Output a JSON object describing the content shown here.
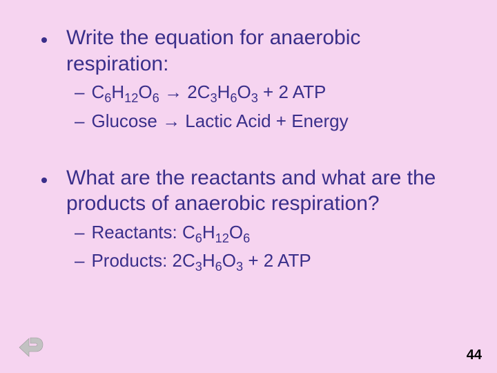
{
  "slide": {
    "background_color": "#f6d4f0",
    "text_color": "#3a2f8a",
    "font_family": "Comic Sans MS",
    "bullets": [
      {
        "text": "Write the equation for anaerobic respiration:",
        "fontsize": 30,
        "subitems": [
          {
            "html": "C<sub>6</sub>H<sub>12</sub>O<sub>6</sub> → 2C<sub>3</sub>H<sub>6</sub>O<sub>3</sub> + 2 ATP",
            "fontsize": 26
          },
          {
            "html": "Glucose → Lactic Acid + Energy",
            "fontsize": 26
          }
        ]
      },
      {
        "text": "What are the reactants and what are the products of anaerobic respiration?",
        "fontsize": 30,
        "subitems": [
          {
            "html": "Reactants: C<sub>6</sub>H<sub>12</sub>O<sub>6</sub>",
            "fontsize": 26
          },
          {
            "html": "Products: 2C<sub>3</sub>H<sub>6</sub>O<sub>3</sub> + 2 ATP",
            "fontsize": 26
          }
        ]
      }
    ],
    "page_number": "44",
    "back_icon_color": "#b8b8b8"
  }
}
